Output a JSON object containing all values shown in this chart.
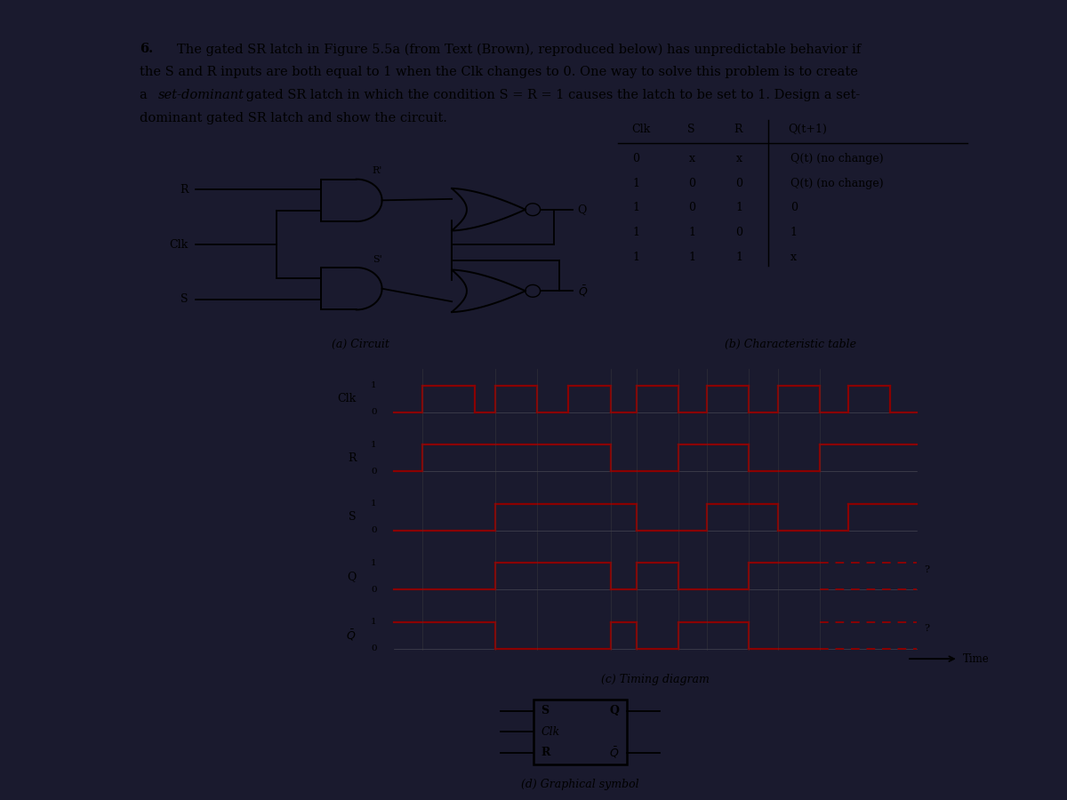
{
  "bg_dark": "#1a1a2e",
  "bg_light": "#f0ede6",
  "line_color": "#000000",
  "signal_color": "#8b0000",
  "table_headers": [
    "Clk",
    "S",
    "R",
    "Q(t+1)"
  ],
  "table_rows": [
    [
      "0",
      "x",
      "x",
      "Q(t) (no change)"
    ],
    [
      "1",
      "0",
      "0",
      "Q(t) (no change)"
    ],
    [
      "1",
      "0",
      "1",
      "0"
    ],
    [
      "1",
      "1",
      "0",
      "1"
    ],
    [
      "1",
      "1",
      "1",
      "x"
    ]
  ],
  "caption_a": "(a) Circuit",
  "caption_b": "(b) Characteristic table",
  "caption_c": "(c) Timing diagram",
  "caption_d": "(d) Graphical symbol",
  "font_size_body": 10.5,
  "font_size_small": 9.0,
  "font_size_tiny": 8.0
}
